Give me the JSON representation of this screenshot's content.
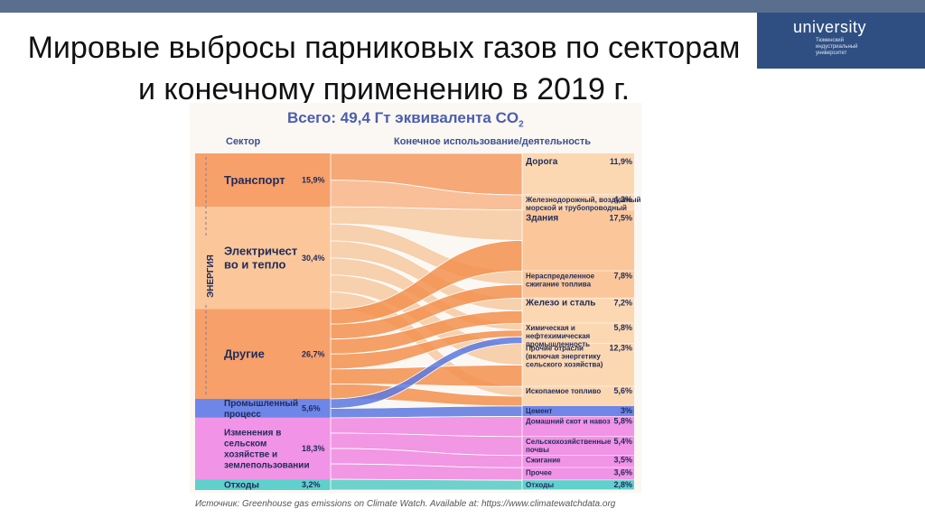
{
  "title": "Мировые выбросы парниковых газов по секторам и конечному применению в 2019 г.",
  "brand": {
    "logo": "university",
    "subtitle": "Тюменский индустриальный университет"
  },
  "chart_data": {
    "type": "sankey",
    "title": "Всего: 49,4 Гт эквивалента CO",
    "title_subscript": "2",
    "left_header": "Сектор",
    "right_header": "Конечное использование/деятельность",
    "group_label": "ЭНЕРГИЯ",
    "sectors": [
      {
        "name": "Транспорт",
        "value": "15,9%",
        "color": "#f7a06a"
      },
      {
        "name": "Электричество и тепло",
        "display": [
          "Электричест",
          "во и тепло"
        ],
        "value": "30,4%",
        "color": "#fbc79a"
      },
      {
        "name": "Другие",
        "value": "26,7%",
        "color": "#f7a06a"
      },
      {
        "name": "Промышленный процесс",
        "display": [
          "Промышленный",
          "процесс"
        ],
        "value": "5,6%",
        "color": "#6e86e8"
      },
      {
        "name": "Изменения в сельском хозяйстве и землепользовании",
        "display": [
          "Изменения в",
          "сельском",
          "хозяйстве и",
          "землепользовании"
        ],
        "value": "18,3%",
        "color": "#f193e6"
      },
      {
        "name": "Отходы",
        "value": "3,2%",
        "color": "#5fd0cc"
      }
    ],
    "end_uses": [
      {
        "name": "Дорога",
        "display": [
          "Дорога"
        ],
        "value": "11,9%"
      },
      {
        "name": "Железнодорожный, воздушный, морской и трубопроводный",
        "display": [
          "Железнодорожный, воздушный",
          "морской и трубопроводный"
        ],
        "value": "4,3%"
      },
      {
        "name": "Здания",
        "display": [
          "Здания"
        ],
        "value": "17,5%"
      },
      {
        "name": "Нераспределенное сжигание топлива",
        "display": [
          "Нераспределенное",
          "сжигание топлива"
        ],
        "value": "7,8%"
      },
      {
        "name": "Железо и сталь",
        "display": [
          "Железо и сталь"
        ],
        "value": "7,2%"
      },
      {
        "name": "Химическая и нефтехимическая промышленность",
        "display": [
          "Химическая и",
          "нефтехимическая",
          "промышленность"
        ],
        "value": "5,8%"
      },
      {
        "name": "Прочие отрасли (включая энергетику сельского хозяйства)",
        "display": [
          "Прочие отрасли",
          "(включая энергетику",
          "сельского хозяйства)"
        ],
        "value": "12,3%"
      },
      {
        "name": "Ископаемое топливо",
        "display": [
          "Ископаемое топливо"
        ],
        "value": "5,6%"
      },
      {
        "name": "Цемент",
        "display": [
          "Цемент"
        ],
        "value": "3%"
      },
      {
        "name": "Домашний скот и навоз",
        "display": [
          "Домашний скот и навоз"
        ],
        "value": "5,8%"
      },
      {
        "name": "Сельскохозяйственные почвы",
        "display": [
          "Сельскохозяйственные",
          "почвы"
        ],
        "value": "5,4%"
      },
      {
        "name": "Сжигание",
        "display": [
          "Сжигание"
        ],
        "value": "3,5%"
      },
      {
        "name": "Прочее",
        "display": [
          "Прочее"
        ],
        "value": "3,6%"
      },
      {
        "name": "Отходы",
        "display": [
          "Отходы"
        ],
        "value": "2,8%"
      }
    ],
    "source": "Источник: Greenhouse gas emissions on Climate Watch. Available at: https://www.climatewatchdata.org"
  }
}
